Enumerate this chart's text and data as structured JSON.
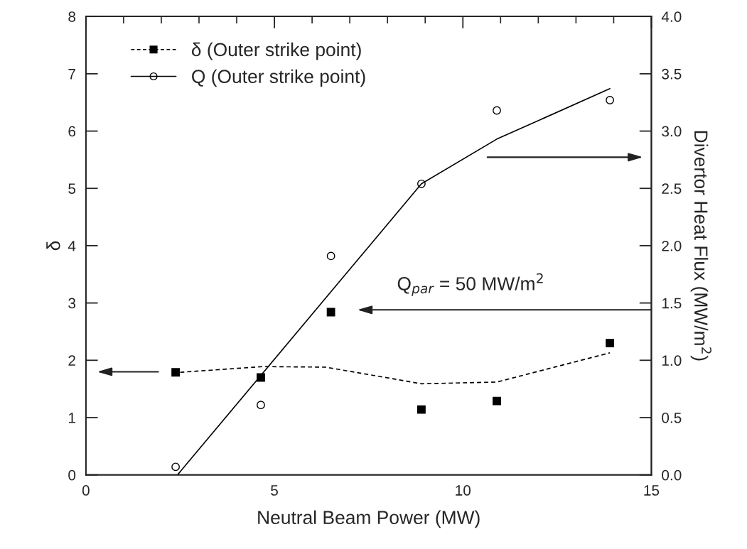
{
  "chart_data": {
    "type": "scatter",
    "xlabel": "Neutral Beam Power (MW)",
    "ylabel": "δ",
    "y2label": "Divertor Heat Flux (MW/m$^{2}$)",
    "xlim": [
      0,
      15
    ],
    "xticks": [
      0,
      {
        "value": 1,
        "label": null
      },
      {
        "value": 2,
        "label": null
      },
      {
        "value": 3,
        "label": null
      },
      {
        "value": 4,
        "label": null
      },
      5,
      {
        "value": 6,
        "label": null
      },
      {
        "value": 7,
        "label": null
      },
      {
        "value": 8,
        "label": null
      },
      {
        "value": 9,
        "label": null
      },
      10,
      {
        "value": 11,
        "label": null
      },
      {
        "value": 12,
        "label": null
      },
      {
        "value": 13,
        "label": null
      },
      {
        "value": 14,
        "label": null
      },
      15
    ],
    "ylim": [
      0,
      8
    ],
    "yticks": [
      0,
      1,
      2,
      3,
      4,
      5,
      6,
      7,
      8
    ],
    "y2lim": [
      0,
      4
    ],
    "y2ticks": [
      {
        "value": 0,
        "label": "0.0"
      },
      {
        "value": 0.5,
        "label": "0.5"
      },
      {
        "value": 1,
        "label": "1.0"
      },
      {
        "value": 1.5,
        "label": "1.5"
      },
      {
        "value": 2,
        "label": "2.0"
      },
      {
        "value": 2.5,
        "label": "2.5"
      },
      {
        "value": 3,
        "label": "3.0"
      },
      {
        "value": 3.5,
        "label": "3.5"
      },
      {
        "value": 4,
        "label": "4.0"
      }
    ],
    "series": [
      {
        "name": "δ (Outer strike point)",
        "marker": "square",
        "color": "#000000",
        "x": [
          2.38,
          4.64,
          6.5,
          8.9,
          10.9,
          13.9
        ],
        "values": [
          1.79,
          1.7,
          2.84,
          1.14,
          1.29,
          2.3
        ]
      },
      {
        "type": "line",
        "line_style": "dashed",
        "color": "#000000",
        "x": [
          2.5,
          4.7,
          6.36,
          8.3,
          8.9,
          10.9,
          13.9
        ],
        "values": [
          1.79,
          1.89,
          1.88,
          1.66,
          1.59,
          1.62,
          2.13
        ]
      },
      {
        "name": "Q (Outer strike point)",
        "marker": "circle",
        "axis": "y2",
        "color": "#000000",
        "x": [
          2.38,
          4.64,
          6.5,
          8.9,
          10.9,
          13.9
        ],
        "values": [
          0.07,
          0.61,
          1.91,
          2.54,
          3.18,
          3.27
        ]
      },
      {
        "type": "line",
        "line_style": "solid",
        "axis": "y2",
        "color": "#000000",
        "x": [
          2.43,
          8.9,
          10.9,
          13.9
        ],
        "values": [
          0,
          2.54,
          2.93,
          3.37
        ]
      }
    ],
    "annotations": [
      "Q$_{par}$ = 50 MW/m$^{2}$"
    ],
    "legend": "top left",
    "grid": false
  }
}
